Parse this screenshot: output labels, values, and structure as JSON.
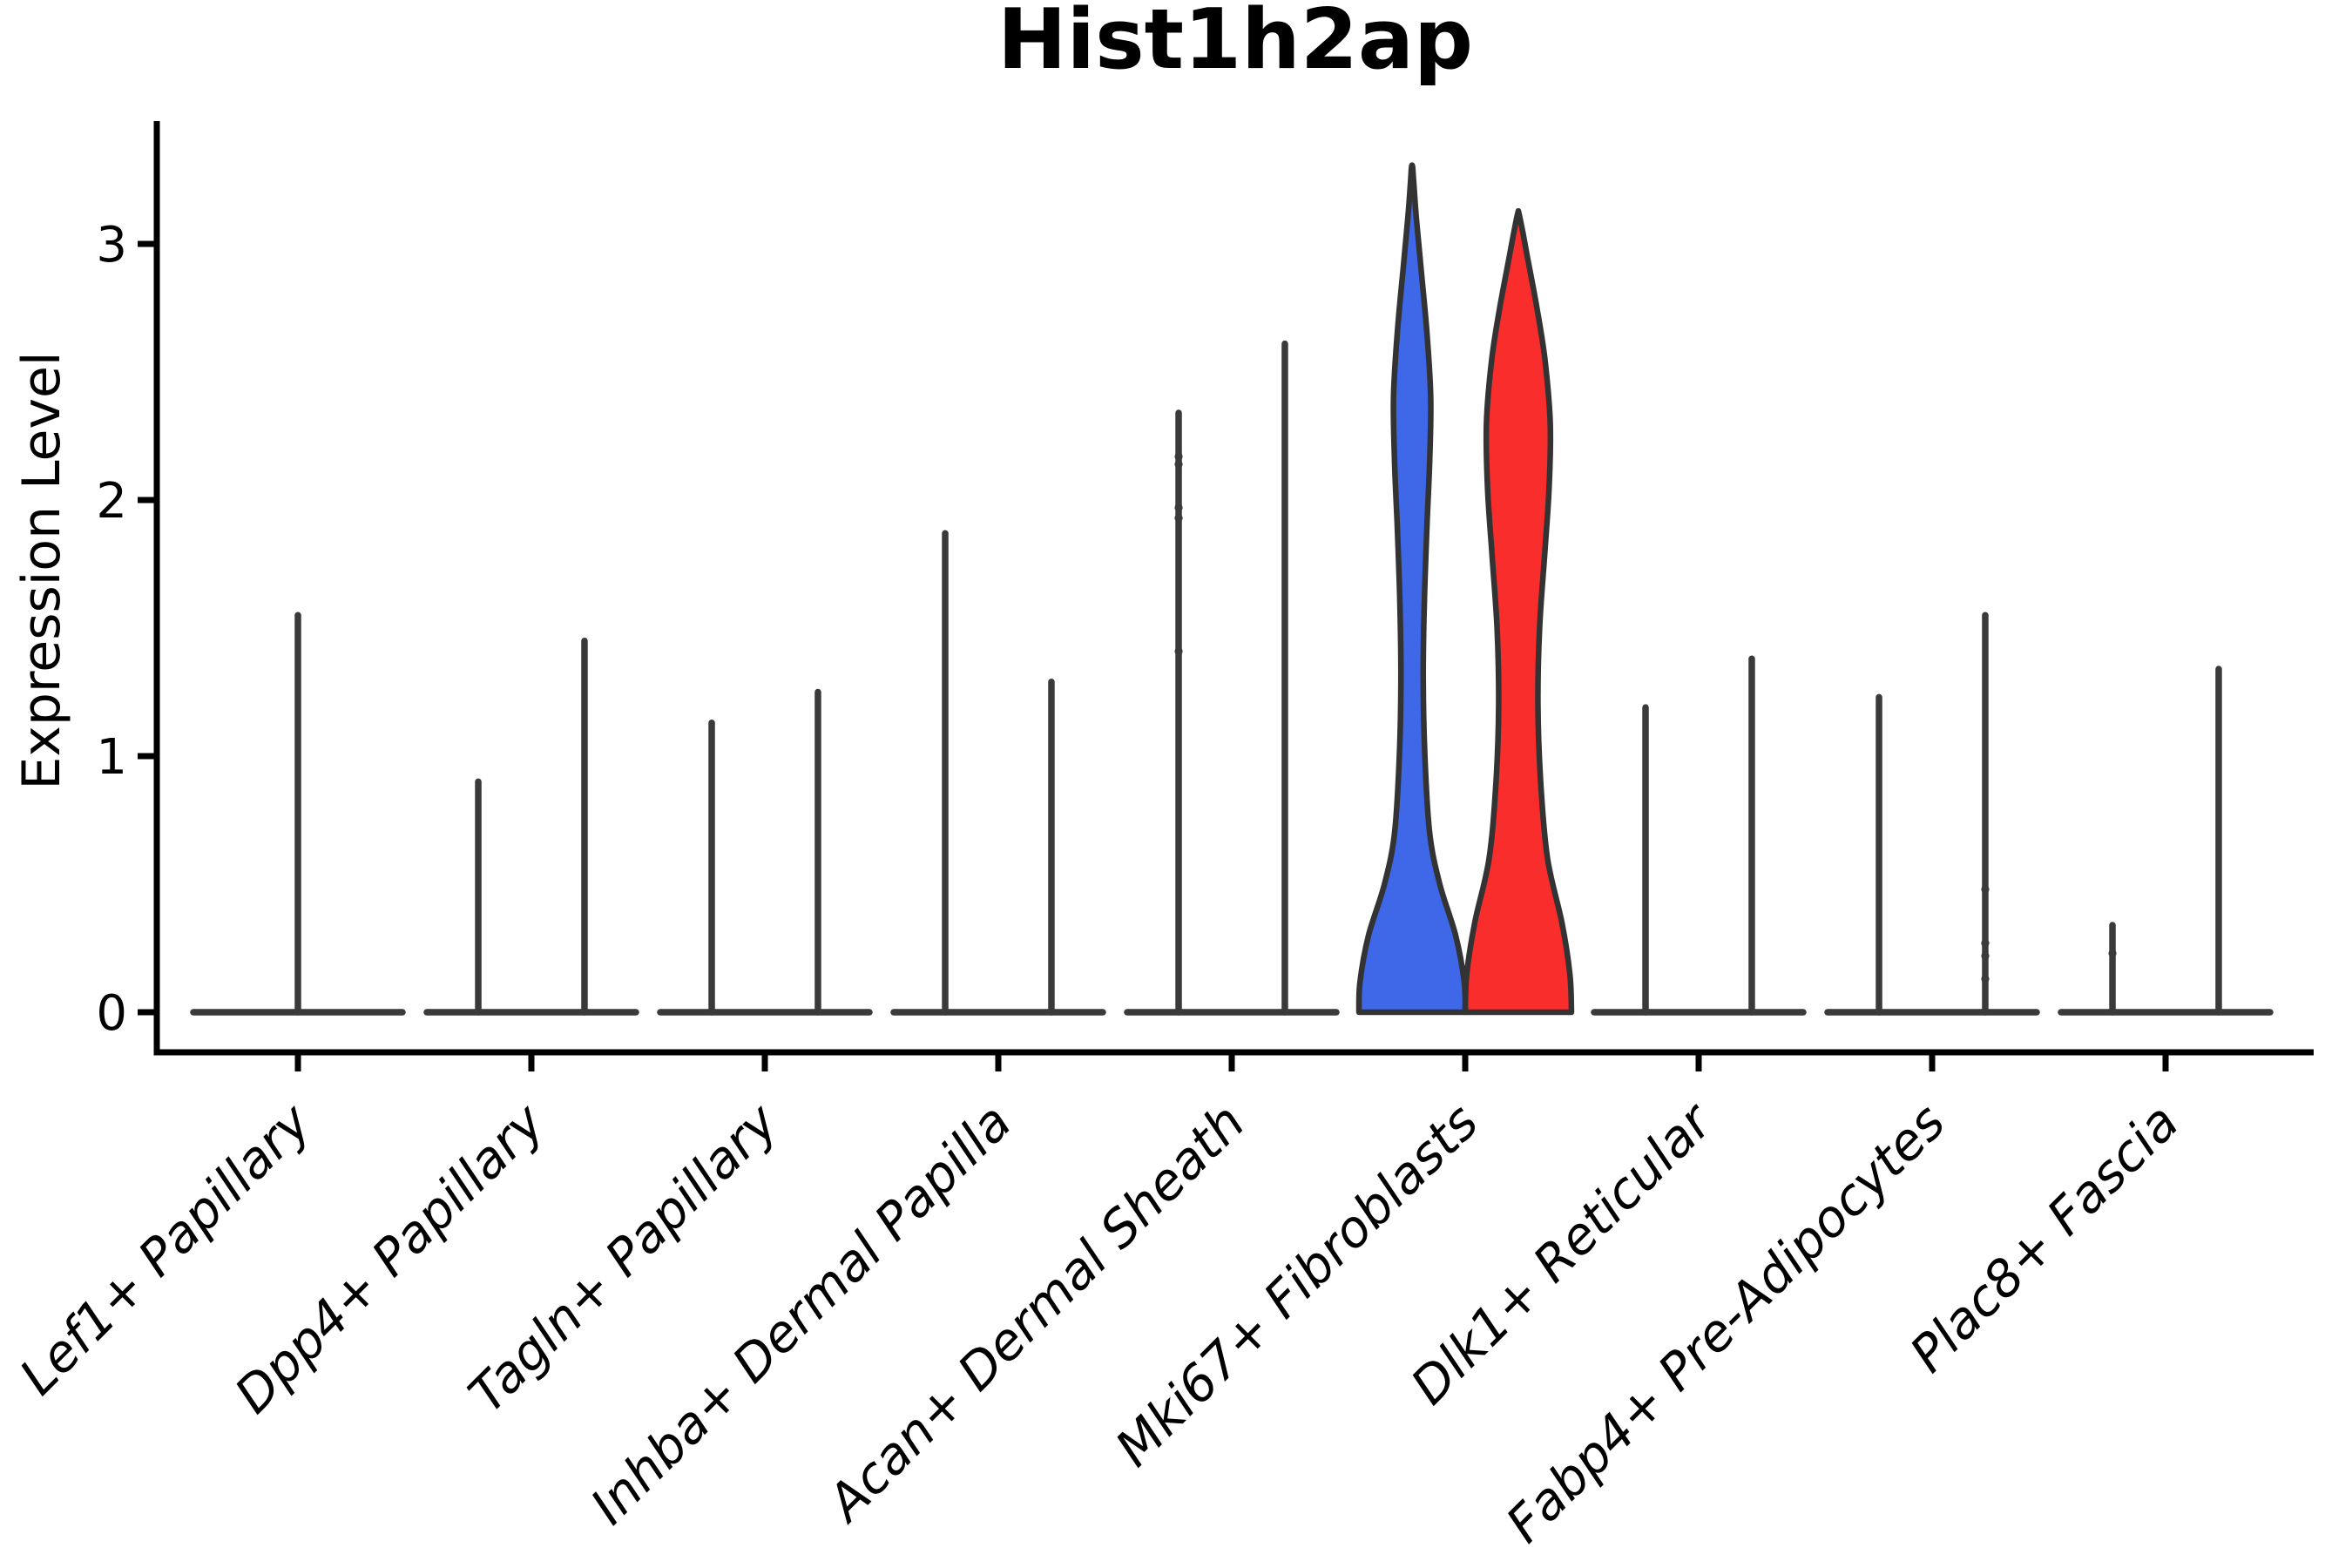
{
  "chart_data": {
    "type": "violin",
    "title": "Hist1h2ap",
    "ylabel": "Expression Level",
    "xlabel": "",
    "yticks": [
      0,
      1,
      2,
      3
    ],
    "ylim": [
      -0.16,
      3.49
    ],
    "grid": false,
    "legend": "none",
    "categories": [
      "Lef1+ Papillary",
      "Dpp4+ Papillary",
      "Tagln+ Papillary",
      "Inhba+ Dermal Papilla",
      "Acan+ Dermal Sheath",
      "Mki67+ Fibroblasts",
      "Dlk1+ Reticular",
      "Fabp4+ Pre-Adipocytes",
      "Plac8+ Fascia"
    ],
    "colors": {
      "left_violin_fill": "#3E68E8",
      "right_violin_fill": "#FA2D2D",
      "violin_outline": "#333333",
      "spike_line": "#3A3A3A",
      "axis_line": "#000000"
    },
    "groups": [
      {
        "category": "Lef1+ Papillary",
        "spikes": [
          {
            "offset": 0,
            "max": 1.55,
            "dots": []
          }
        ]
      },
      {
        "category": "Dpp4+ Papillary",
        "spikes": [
          {
            "offset": -0.2275,
            "max": 0.9,
            "dots": []
          },
          {
            "offset": 0.2275,
            "max": 1.45,
            "dots": []
          }
        ]
      },
      {
        "category": "Tagln+ Papillary",
        "spikes": [
          {
            "offset": -0.2275,
            "max": 1.13,
            "dots": []
          },
          {
            "offset": 0.2275,
            "max": 1.25,
            "dots": []
          }
        ]
      },
      {
        "category": "Inhba+ Dermal Papilla",
        "spikes": [
          {
            "offset": -0.2275,
            "max": 1.87,
            "dots": []
          },
          {
            "offset": 0.2275,
            "max": 1.29,
            "dots": []
          }
        ]
      },
      {
        "category": "Acan+ Dermal Sheath",
        "spikes": [
          {
            "offset": -0.2275,
            "max": 2.34,
            "dots": [
              2.17,
              2.14,
              1.97,
              1.93,
              1.41
            ]
          },
          {
            "offset": 0.2275,
            "max": 2.61,
            "dots": []
          }
        ]
      },
      {
        "category": "Mki67+ Fibroblasts",
        "violins": [
          {
            "offset": -0.2275,
            "fill": "#3E68E8",
            "max": 3.3,
            "profile": [
              [
                0,
                1.0
              ],
              [
                0.12,
                0.98
              ],
              [
                0.3,
                0.82
              ],
              [
                0.5,
                0.52
              ],
              [
                0.7,
                0.33
              ],
              [
                1.0,
                0.24
              ],
              [
                1.3,
                0.21
              ],
              [
                1.6,
                0.23
              ],
              [
                1.9,
                0.28
              ],
              [
                2.15,
                0.33
              ],
              [
                2.4,
                0.35
              ],
              [
                2.65,
                0.28
              ],
              [
                2.9,
                0.17
              ],
              [
                3.1,
                0.08
              ],
              [
                3.24,
                0.03
              ],
              [
                3.3,
                0.01
              ]
            ]
          },
          {
            "offset": 0.2275,
            "fill": "#FA2D2D",
            "max": 3.12,
            "profile": [
              [
                0,
                1.0
              ],
              [
                0.15,
                0.97
              ],
              [
                0.35,
                0.82
              ],
              [
                0.6,
                0.55
              ],
              [
                0.9,
                0.42
              ],
              [
                1.2,
                0.37
              ],
              [
                1.5,
                0.4
              ],
              [
                1.8,
                0.5
              ],
              [
                2.05,
                0.58
              ],
              [
                2.3,
                0.6
              ],
              [
                2.55,
                0.5
              ],
              [
                2.75,
                0.35
              ],
              [
                2.95,
                0.17
              ],
              [
                3.05,
                0.08
              ],
              [
                3.12,
                0.01
              ]
            ]
          }
        ]
      },
      {
        "category": "Dlk1+ Reticular",
        "spikes": [
          {
            "offset": -0.2275,
            "max": 1.19,
            "dots": []
          },
          {
            "offset": 0.2275,
            "max": 1.38,
            "dots": []
          }
        ]
      },
      {
        "category": "Fabp4+ Pre-Adipocytes",
        "spikes": [
          {
            "offset": -0.2275,
            "max": 1.23,
            "dots": []
          },
          {
            "offset": 0.2275,
            "max": 1.55,
            "dots": [
              0.48,
              0.27,
              0.22,
              0.13
            ]
          }
        ]
      },
      {
        "category": "Plac8+ Fascia",
        "spikes": [
          {
            "offset": -0.2275,
            "max": 0.34,
            "dots": [
              0.23
            ]
          },
          {
            "offset": 0.2275,
            "max": 1.34,
            "dots": []
          }
        ]
      }
    ]
  }
}
